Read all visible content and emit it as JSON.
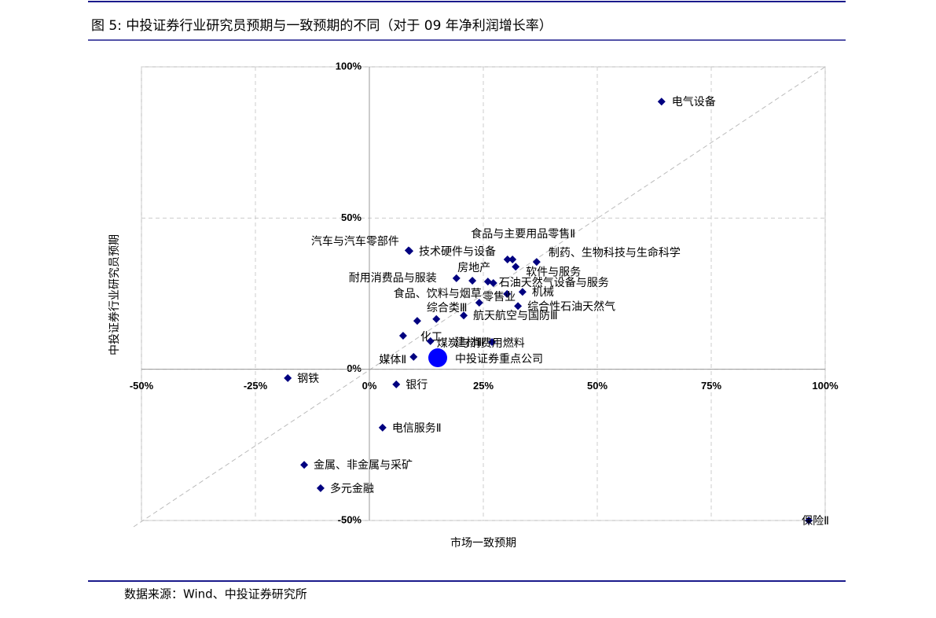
{
  "chart_data": {
    "type": "scatter",
    "title": "图 5:  中投证券行业研究员预期与一致预期的不同（对于 09 年净利润增长率）",
    "x_label": "市场一致预期",
    "y_label": "中投证券行业研究员预期",
    "source": "数据来源：Wind、中投证券研究所",
    "xlim": [
      -50,
      100
    ],
    "ylim": [
      -50,
      100
    ],
    "xticks": [
      {
        "value": -50,
        "label": "-50%"
      },
      {
        "value": -25,
        "label": "-25%"
      },
      {
        "value": 0,
        "label": "0%"
      },
      {
        "value": 25,
        "label": "25%"
      },
      {
        "value": 50,
        "label": "50%"
      },
      {
        "value": 75,
        "label": "75%"
      },
      {
        "value": 100,
        "label": "100%"
      }
    ],
    "yticks": [
      {
        "value": -50,
        "label": "-50%"
      },
      {
        "value": 0,
        "label": "0%"
      },
      {
        "value": 50,
        "label": "50%"
      },
      {
        "value": 100,
        "label": "100%"
      }
    ],
    "grid": true,
    "series": [
      {
        "color": "#000080",
        "marker": "diamond",
        "labels": [
          "电气设备",
          "保险Ⅱ",
          "钢铁",
          "银行",
          "电信服务Ⅱ",
          "金属、非金属与采矿",
          "多元金融",
          "媒体Ⅱ",
          "化工",
          "建材Ⅲ",
          "煤炭与消费用燃料",
          "综合类Ⅲ",
          null,
          "航天航空与国防Ⅲ",
          "零售业",
          "综合性石油天然气",
          "机械",
          "食品、饮料与烟草",
          "石油天然气设备与服务",
          "耐用消费品与服装",
          "房地产",
          null,
          "软件与服务",
          "食品与主要用品零售Ⅱ",
          null,
          "制药、生物科技与生命科学",
          "技术硬件与设备",
          "汽车与汽车零部件"
        ],
        "x": [
          64.1,
          96.4,
          -17.9,
          5.9,
          2.9,
          -14.3,
          -10.7,
          9.7,
          7.4,
          26.9,
          13.4,
          10.5,
          14.7,
          20.7,
          30.2,
          32.6,
          33.6,
          24.1,
          27.2,
          19.1,
          22.6,
          26.0,
          32.1,
          30.3,
          31.4,
          36.7,
          8.8,
          8.6
        ],
        "y": [
          88.5,
          -50,
          -2.9,
          -5.0,
          -19.3,
          -31.6,
          -39.3,
          4.1,
          11.1,
          9.0,
          9.3,
          16.0,
          16.6,
          17.8,
          24.9,
          20.9,
          25.6,
          22.0,
          28.5,
          30.1,
          29.3,
          29.0,
          33.9,
          36.3,
          36.3,
          35.5,
          39.1,
          39.3
        ]
      },
      {
        "color": "#0000ff",
        "marker": "circle",
        "labels": [
          "中投证券重点公司"
        ],
        "x": [
          15.0
        ],
        "y": [
          3.8
        ]
      }
    ]
  }
}
